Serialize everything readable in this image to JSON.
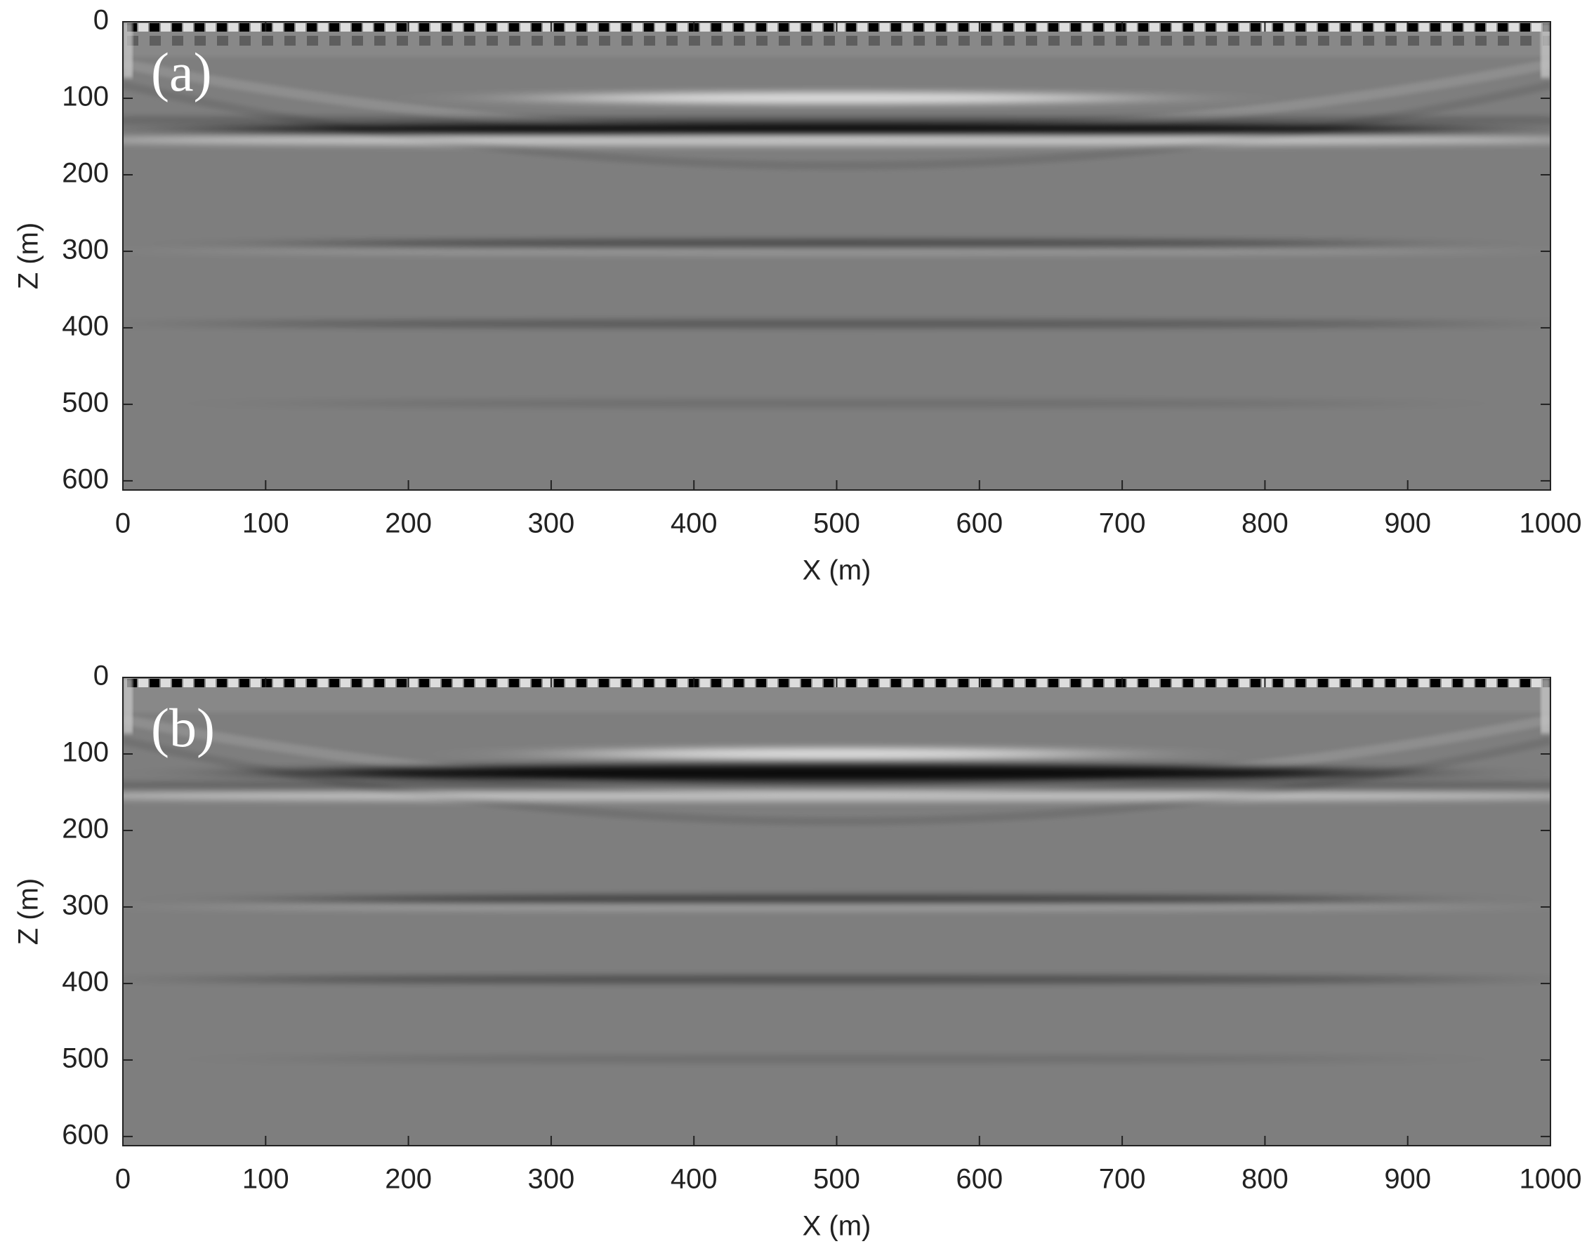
{
  "chart_data": [
    {
      "type": "image",
      "panel_label": "(a)",
      "xlabel": "X (m)",
      "ylabel": "Z (m)",
      "colormap": "gray",
      "y_reversed": true,
      "xlim": [
        0,
        1000
      ],
      "ylim": [
        0,
        612
      ],
      "xticks": [
        0,
        100,
        200,
        300,
        400,
        500,
        600,
        700,
        800,
        900,
        1000
      ],
      "yticks": [
        0,
        100,
        200,
        300,
        400,
        500,
        600
      ]
    },
    {
      "type": "image",
      "panel_label": "(b)",
      "xlabel": "X (m)",
      "ylabel": "Z (m)",
      "colormap": "gray",
      "y_reversed": true,
      "xlim": [
        0,
        1000
      ],
      "ylim": [
        0,
        612
      ],
      "xticks": [
        0,
        100,
        200,
        300,
        400,
        500,
        600,
        700,
        800,
        900,
        1000
      ],
      "yticks": [
        0,
        100,
        200,
        300,
        400,
        500,
        600
      ]
    }
  ]
}
